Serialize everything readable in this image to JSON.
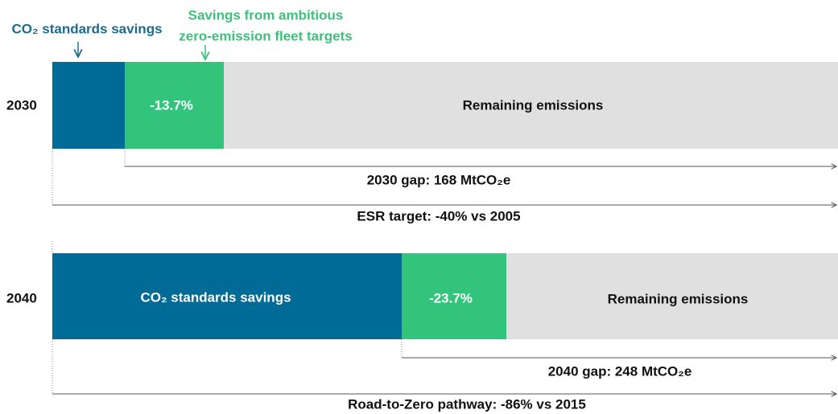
{
  "annotations": {
    "co2_standards": "CO₂ standards savings",
    "ambitious_line1": "Savings from ambitious",
    "ambitious_line2": "zero-emission fleet targets"
  },
  "rows": [
    {
      "year": "2030",
      "segments": {
        "green": "-13.7%",
        "remaining": "Remaining emissions"
      },
      "gap": "2030 gap: 168 MtCO₂e",
      "target": "ESR target: -40% vs 2005"
    },
    {
      "year": "2040",
      "segments": {
        "blue": "CO₂ standards savings",
        "green": "-23.7%",
        "remaining": "Remaining emissions"
      },
      "gap": "2040 gap: 248 MtCO₂e",
      "target": "Road-to-Zero pathway: -86% vs 2015"
    }
  ]
}
